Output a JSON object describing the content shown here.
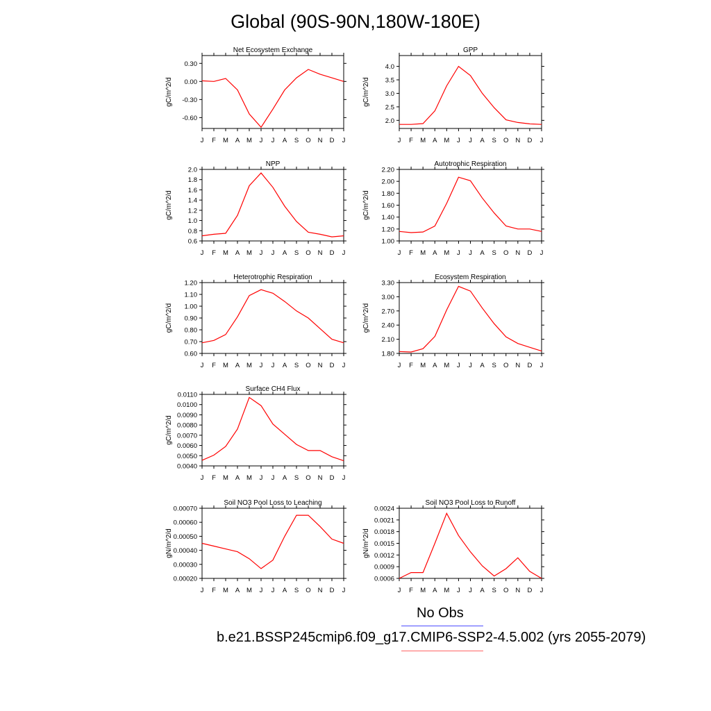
{
  "figure": {
    "title": "Global (90S-90N,180W-180E)",
    "legend": [
      {
        "label": "No Obs",
        "color": "#4b4bff"
      },
      {
        "label": "b.e21.BSSP245cmip6.f09_g17.CMIP6-SSP2-4.5.002 (yrs 2055-2079)",
        "color": "#ff6464"
      }
    ],
    "line_color": "#ff0000"
  },
  "chart_data": [
    {
      "type": "line",
      "title": "Net Ecosystem Exchange",
      "ylabel": "gC/m^2/d",
      "categories": [
        "J",
        "F",
        "M",
        "A",
        "M",
        "J",
        "J",
        "A",
        "S",
        "O",
        "N",
        "D",
        "J"
      ],
      "series": [
        {
          "values": [
            0.01,
            0.0,
            0.05,
            -0.14,
            -0.54,
            -0.76,
            -0.46,
            -0.14,
            0.06,
            0.2,
            0.12,
            0.06,
            0.0
          ]
        }
      ],
      "ylim": [
        -0.78,
        0.43
      ],
      "yticks": [
        0.3,
        0.0,
        -0.3,
        -0.6
      ],
      "yticklabels": [
        "0.30",
        "0.00",
        "-0.30",
        "-0.60"
      ]
    },
    {
      "type": "line",
      "title": "GPP",
      "ylabel": "gC/m^2/d",
      "categories": [
        "J",
        "F",
        "M",
        "A",
        "M",
        "J",
        "J",
        "A",
        "S",
        "O",
        "N",
        "D",
        "J"
      ],
      "series": [
        {
          "values": [
            1.85,
            1.85,
            1.88,
            2.35,
            3.28,
            4.0,
            3.66,
            3.0,
            2.47,
            2.02,
            1.92,
            1.87,
            1.85
          ]
        }
      ],
      "ylim": [
        1.7,
        4.4
      ],
      "yticks": [
        2.0,
        2.5,
        3.0,
        3.5,
        4.0
      ],
      "yticklabels": [
        "2.0",
        "2.5",
        "3.0",
        "3.5",
        "4.0"
      ]
    },
    {
      "type": "line",
      "title": "NPP",
      "ylabel": "gC/m^2/d",
      "categories": [
        "J",
        "F",
        "M",
        "A",
        "M",
        "J",
        "J",
        "A",
        "S",
        "O",
        "N",
        "D",
        "J"
      ],
      "series": [
        {
          "values": [
            0.7,
            0.73,
            0.75,
            1.1,
            1.68,
            1.93,
            1.65,
            1.28,
            0.98,
            0.77,
            0.73,
            0.68,
            0.7
          ]
        }
      ],
      "ylim": [
        0.6,
        2.0
      ],
      "yticks": [
        0.6,
        0.8,
        1.0,
        1.2,
        1.4,
        1.6,
        1.8,
        2.0
      ],
      "yticklabels": [
        "0.6",
        "0.8",
        "1.0",
        "1.2",
        "1.4",
        "1.6",
        "1.8",
        "2.0"
      ]
    },
    {
      "type": "line",
      "title": "Autotrophic Respiration",
      "ylabel": "gC/m^2/d",
      "categories": [
        "J",
        "F",
        "M",
        "A",
        "M",
        "J",
        "J",
        "A",
        "S",
        "O",
        "N",
        "D",
        "J"
      ],
      "series": [
        {
          "values": [
            1.16,
            1.14,
            1.15,
            1.25,
            1.63,
            2.07,
            2.01,
            1.72,
            1.47,
            1.25,
            1.2,
            1.2,
            1.16
          ]
        }
      ],
      "ylim": [
        1.0,
        2.2
      ],
      "yticks": [
        1.0,
        1.2,
        1.4,
        1.6,
        1.8,
        2.0,
        2.2
      ],
      "yticklabels": [
        "1.00",
        "1.20",
        "1.40",
        "1.60",
        "1.80",
        "2.00",
        "2.20"
      ]
    },
    {
      "type": "line",
      "title": "Heterotrophic Respiration",
      "ylabel": "gC/m^2/d",
      "categories": [
        "J",
        "F",
        "M",
        "A",
        "M",
        "J",
        "J",
        "A",
        "S",
        "O",
        "N",
        "D",
        "J"
      ],
      "series": [
        {
          "values": [
            0.69,
            0.71,
            0.76,
            0.91,
            1.09,
            1.14,
            1.11,
            1.04,
            0.96,
            0.9,
            0.81,
            0.72,
            0.69
          ]
        }
      ],
      "ylim": [
        0.6,
        1.2
      ],
      "yticks": [
        0.6,
        0.7,
        0.8,
        0.9,
        1.0,
        1.1,
        1.2
      ],
      "yticklabels": [
        "0.60",
        "0.70",
        "0.80",
        "0.90",
        "1.00",
        "1.10",
        "1.20"
      ]
    },
    {
      "type": "line",
      "title": "Ecosystem Respiration",
      "ylabel": "gC/m^2/d",
      "categories": [
        "J",
        "F",
        "M",
        "A",
        "M",
        "J",
        "J",
        "A",
        "S",
        "O",
        "N",
        "D",
        "J"
      ],
      "series": [
        {
          "values": [
            1.84,
            1.83,
            1.9,
            2.16,
            2.72,
            3.22,
            3.12,
            2.76,
            2.43,
            2.15,
            2.01,
            1.93,
            1.85
          ]
        }
      ],
      "ylim": [
        1.8,
        3.3
      ],
      "yticks": [
        1.8,
        2.1,
        2.4,
        2.7,
        3.0,
        3.3
      ],
      "yticklabels": [
        "1.80",
        "2.10",
        "2.40",
        "2.70",
        "3.00",
        "3.30"
      ]
    },
    {
      "type": "line",
      "title": "Surface CH4 Flux",
      "ylabel": "gC/m^2/d",
      "categories": [
        "J",
        "F",
        "M",
        "A",
        "M",
        "J",
        "J",
        "A",
        "S",
        "O",
        "N",
        "D",
        "J"
      ],
      "series": [
        {
          "values": [
            0.00455,
            0.00505,
            0.0059,
            0.0076,
            0.0107,
            0.0099,
            0.0081,
            0.0071,
            0.0061,
            0.0055,
            0.0055,
            0.0049,
            0.0045
          ]
        }
      ],
      "ylim": [
        0.004,
        0.011
      ],
      "yticks": [
        0.004,
        0.005,
        0.006,
        0.007,
        0.008,
        0.009,
        0.01,
        0.011
      ],
      "yticklabels": [
        "0.0040",
        "0.0050",
        "0.0060",
        "0.0070",
        "0.0080",
        "0.0090",
        "0.0100",
        "0.0110"
      ]
    },
    {
      "type": "line",
      "title": "Soil NO3 Pool Loss to Leaching",
      "ylabel": "gN/m^2/d",
      "categories": [
        "J",
        "F",
        "M",
        "A",
        "M",
        "J",
        "J",
        "A",
        "S",
        "O",
        "N",
        "D",
        "J"
      ],
      "series": [
        {
          "values": [
            0.00045,
            0.00043,
            0.00041,
            0.00039,
            0.00034,
            0.00027,
            0.00033,
            0.0005,
            0.00065,
            0.00065,
            0.00057,
            0.00048,
            0.00045
          ]
        }
      ],
      "ylim": [
        0.0002,
        0.0007
      ],
      "yticks": [
        0.0002,
        0.0003,
        0.0004,
        0.0005,
        0.0006,
        0.0007
      ],
      "yticklabels": [
        "0.00020",
        "0.00030",
        "0.00040",
        "0.00050",
        "0.00060",
        "0.00070"
      ]
    },
    {
      "type": "line",
      "title": "Soil NO3 Pool Loss to Runoff",
      "ylabel": "gN/m^2/d",
      "categories": [
        "J",
        "F",
        "M",
        "A",
        "M",
        "J",
        "J",
        "A",
        "S",
        "O",
        "N",
        "D",
        "J"
      ],
      "series": [
        {
          "values": [
            0.0006,
            0.00075,
            0.00075,
            0.0015,
            0.00227,
            0.0017,
            0.00128,
            0.00092,
            0.00066,
            0.00085,
            0.00113,
            0.00078,
            0.0006
          ]
        }
      ],
      "ylim": [
        0.0006,
        0.0024
      ],
      "yticks": [
        0.0006,
        0.0009,
        0.0012,
        0.0015,
        0.0018,
        0.0021,
        0.0024
      ],
      "yticklabels": [
        "0.0006",
        "0.0009",
        "0.0012",
        "0.0015",
        "0.0018",
        "0.0021",
        "0.0024"
      ]
    }
  ]
}
